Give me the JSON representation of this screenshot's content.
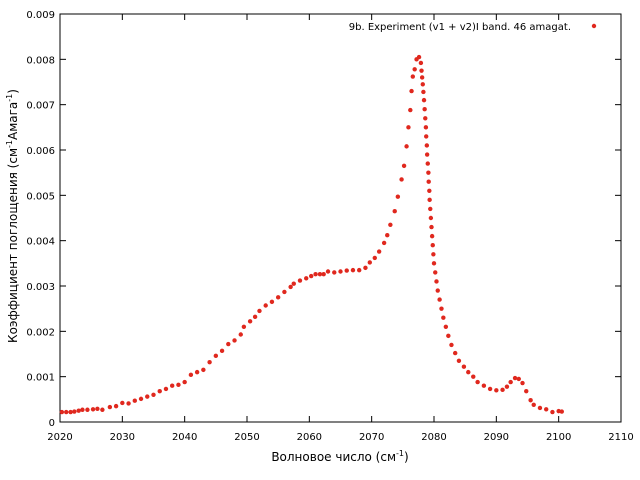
{
  "chart_data": {
    "type": "scatter",
    "x_label": [
      "Волновое число (см",
      "-1",
      ")"
    ],
    "y_label": [
      "Коэффициент поглощения (см",
      "-1",
      "Амага",
      "-1",
      ")"
    ],
    "xlim": [
      2020,
      2110
    ],
    "xticks": [
      2020,
      2030,
      2040,
      2050,
      2060,
      2070,
      2080,
      2090,
      2100,
      2110
    ],
    "ylim": [
      0,
      0.009
    ],
    "yticks": [
      0,
      0.001,
      0.002,
      0.003,
      0.004,
      0.005,
      0.006,
      0.007,
      0.008,
      0.009
    ],
    "legend": "top-right",
    "series": [
      {
        "name": "9b. Experiment (v1 + v2)I band. 46 amagat.",
        "color": "#e0281e",
        "x": [
          2020.3,
          2021,
          2021.7,
          2022.3,
          2023,
          2023.6,
          2024.4,
          2025.3,
          2026,
          2026.8,
          2028,
          2029,
          2030,
          2031,
          2032,
          2033,
          2034,
          2035,
          2036,
          2037,
          2038,
          2039,
          2040,
          2041,
          2042,
          2043,
          2044,
          2045,
          2046,
          2047,
          2048,
          2049,
          2049.5,
          2050.5,
          2051.3,
          2052,
          2053,
          2054,
          2055,
          2056,
          2057,
          2057.5,
          2058.5,
          2059.5,
          2060.3,
          2061,
          2061.7,
          2062.3,
          2063,
          2064,
          2065,
          2066,
          2067,
          2068,
          2069,
          2069.7,
          2070.5,
          2071.2,
          2072,
          2072.5,
          2073,
          2073.7,
          2074.2,
          2074.8,
          2075.2,
          2075.6,
          2075.9,
          2076.2,
          2076.4,
          2076.6,
          2076.9,
          2077.2,
          2077.6,
          2077.9,
          2078,
          2078.1,
          2078.2,
          2078.3,
          2078.4,
          2078.5,
          2078.6,
          2078.7,
          2078.75,
          2078.85,
          2078.9,
          2079,
          2079.1,
          2079.15,
          2079.25,
          2079.3,
          2079.4,
          2079.5,
          2079.6,
          2079.7,
          2079.8,
          2079.9,
          2080,
          2080.2,
          2080.4,
          2080.6,
          2080.9,
          2081.2,
          2081.5,
          2081.9,
          2082.3,
          2082.8,
          2083.4,
          2084,
          2084.8,
          2085.5,
          2086.3,
          2087,
          2088,
          2089,
          2090,
          2091,
          2091.7,
          2092.3,
          2093,
          2093.6,
          2094.2,
          2094.8,
          2095.5,
          2096,
          2097,
          2098,
          2099,
          2100,
          2100.5
        ],
        "values": [
          0.00022,
          0.00022,
          0.00022,
          0.00023,
          0.00025,
          0.00027,
          0.00027,
          0.00028,
          0.00029,
          0.00027,
          0.00033,
          0.00035,
          0.00042,
          0.00041,
          0.00047,
          0.00051,
          0.00056,
          0.0006,
          0.00068,
          0.00073,
          0.0008,
          0.00082,
          0.00088,
          0.00104,
          0.0011,
          0.00115,
          0.00132,
          0.00146,
          0.00157,
          0.00172,
          0.0018,
          0.00193,
          0.0021,
          0.00222,
          0.00232,
          0.00245,
          0.00257,
          0.00265,
          0.00275,
          0.00287,
          0.00298,
          0.00305,
          0.00312,
          0.00317,
          0.00322,
          0.00326,
          0.00326,
          0.00326,
          0.00332,
          0.0033,
          0.00332,
          0.00334,
          0.00335,
          0.00335,
          0.0034,
          0.00352,
          0.00362,
          0.00376,
          0.00395,
          0.00412,
          0.00435,
          0.00465,
          0.00497,
          0.00535,
          0.00565,
          0.00608,
          0.0065,
          0.00688,
          0.0073,
          0.00762,
          0.00778,
          0.008,
          0.00805,
          0.00792,
          0.00775,
          0.0076,
          0.00745,
          0.00728,
          0.0071,
          0.0069,
          0.0067,
          0.0065,
          0.0063,
          0.0061,
          0.0059,
          0.0057,
          0.0055,
          0.0053,
          0.0051,
          0.0049,
          0.0047,
          0.0045,
          0.0043,
          0.0041,
          0.0039,
          0.0037,
          0.0035,
          0.0033,
          0.0031,
          0.0029,
          0.0027,
          0.0025,
          0.0023,
          0.0021,
          0.0019,
          0.0017,
          0.00152,
          0.00135,
          0.00122,
          0.0011,
          0.001,
          0.00088,
          0.0008,
          0.00073,
          0.0007,
          0.00071,
          0.00078,
          0.00088,
          0.00097,
          0.00095,
          0.00086,
          0.00068,
          0.00048,
          0.00038,
          0.00031,
          0.00028,
          0.00022,
          0.00024,
          0.00023
        ]
      }
    ]
  }
}
